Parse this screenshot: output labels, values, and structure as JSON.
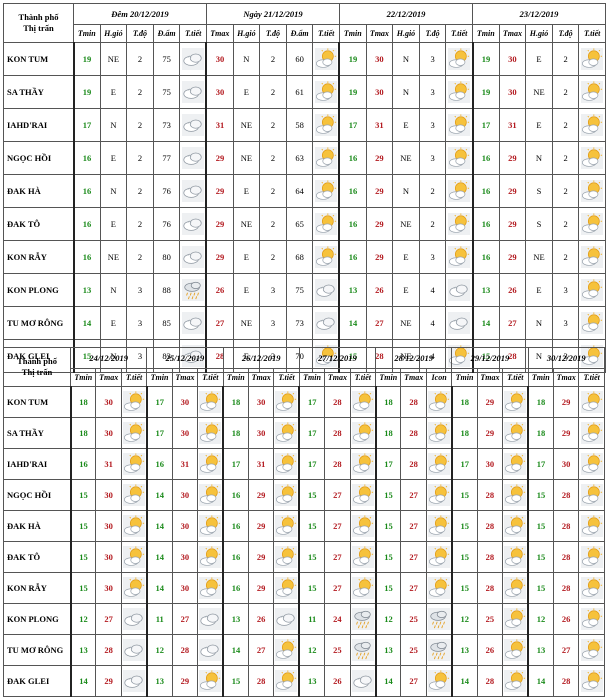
{
  "table1": {
    "city_header": [
      "Thành phố",
      "Thị trấn"
    ],
    "groups": [
      {
        "title": "Đêm 20/12/2019",
        "cols": [
          "Tmin",
          "H.gió",
          "T.độ",
          "Đ.ẩm",
          "T.tiết"
        ]
      },
      {
        "title": "Ngày 21/12/2019",
        "cols": [
          "Tmax",
          "H.gió",
          "T.độ",
          "Đ.ẩm",
          "T.tiết"
        ]
      },
      {
        "title": "22/12/2019",
        "cols": [
          "Tmin",
          "Tmax",
          "H.gió",
          "T.độ",
          "T.tiết"
        ]
      },
      {
        "title": "23/12/2019",
        "cols": [
          "Tmin",
          "Tmax",
          "H.gió",
          "T.độ",
          "T.tiết"
        ]
      }
    ],
    "rows": [
      {
        "city": "KON TUM",
        "g1": [
          "19",
          "NE",
          "2",
          "75"
        ],
        "i1": "cloud",
        "g2": [
          "30",
          "N",
          "2",
          "60"
        ],
        "i2": "suncloud",
        "g3": [
          "19",
          "30",
          "N",
          "3"
        ],
        "i3": "suncloud",
        "g4": [
          "19",
          "30",
          "E",
          "2"
        ],
        "i4": "suncloud"
      },
      {
        "city": "SA THẦY",
        "g1": [
          "19",
          "E",
          "2",
          "75"
        ],
        "i1": "cloud",
        "g2": [
          "30",
          "E",
          "2",
          "61"
        ],
        "i2": "suncloud",
        "g3": [
          "19",
          "30",
          "N",
          "3"
        ],
        "i3": "suncloud",
        "g4": [
          "19",
          "30",
          "NE",
          "2"
        ],
        "i4": "suncloud"
      },
      {
        "city": "IAHD'RAI",
        "g1": [
          "17",
          "N",
          "2",
          "73"
        ],
        "i1": "cloud",
        "g2": [
          "31",
          "NE",
          "2",
          "58"
        ],
        "i2": "suncloud",
        "g3": [
          "17",
          "31",
          "E",
          "3"
        ],
        "i3": "suncloud",
        "g4": [
          "17",
          "31",
          "E",
          "2"
        ],
        "i4": "suncloud"
      },
      {
        "city": "NGỌC HỒI",
        "g1": [
          "16",
          "E",
          "2",
          "77"
        ],
        "i1": "cloud",
        "g2": [
          "29",
          "NE",
          "2",
          "63"
        ],
        "i2": "suncloud",
        "g3": [
          "16",
          "29",
          "NE",
          "3"
        ],
        "i3": "suncloud",
        "g4": [
          "16",
          "29",
          "N",
          "2"
        ],
        "i4": "suncloud"
      },
      {
        "city": "ĐAK HÀ",
        "g1": [
          "16",
          "N",
          "2",
          "76"
        ],
        "i1": "cloud",
        "g2": [
          "29",
          "E",
          "2",
          "64"
        ],
        "i2": "suncloud",
        "g3": [
          "16",
          "29",
          "N",
          "2"
        ],
        "i3": "suncloud",
        "g4": [
          "16",
          "29",
          "S",
          "2"
        ],
        "i4": "suncloud"
      },
      {
        "city": "ĐAK TÔ",
        "g1": [
          "16",
          "E",
          "2",
          "76"
        ],
        "i1": "cloud",
        "g2": [
          "29",
          "NE",
          "2",
          "65"
        ],
        "i2": "suncloud",
        "g3": [
          "16",
          "29",
          "NE",
          "2"
        ],
        "i3": "suncloud",
        "g4": [
          "16",
          "29",
          "S",
          "2"
        ],
        "i4": "suncloud"
      },
      {
        "city": "KON RẪY",
        "g1": [
          "16",
          "NE",
          "2",
          "80"
        ],
        "i1": "cloud",
        "g2": [
          "29",
          "E",
          "2",
          "68"
        ],
        "i2": "suncloud",
        "g3": [
          "16",
          "29",
          "E",
          "3"
        ],
        "i3": "suncloud",
        "g4": [
          "16",
          "29",
          "NE",
          "2"
        ],
        "i4": "suncloud"
      },
      {
        "city": "KON PLONG",
        "g1": [
          "13",
          "N",
          "3",
          "88"
        ],
        "i1": "rain",
        "g2": [
          "26",
          "E",
          "3",
          "75"
        ],
        "i2": "cloud",
        "g3": [
          "13",
          "26",
          "E",
          "4"
        ],
        "i3": "cloud",
        "g4": [
          "13",
          "26",
          "E",
          "3"
        ],
        "i4": "suncloud"
      },
      {
        "city": "TU MƠ RÔNG",
        "g1": [
          "14",
          "E",
          "3",
          "85"
        ],
        "i1": "cloud",
        "g2": [
          "27",
          "NE",
          "3",
          "73"
        ],
        "i2": "cloud",
        "g3": [
          "14",
          "27",
          "NE",
          "4"
        ],
        "i3": "cloud",
        "g4": [
          "14",
          "27",
          "N",
          "3"
        ],
        "i4": "suncloud"
      },
      {
        "city": "ĐAK GLEI",
        "g1": [
          "15",
          "N",
          "3",
          "83"
        ],
        "i1": "cloud",
        "g2": [
          "28",
          "E",
          "3",
          "70"
        ],
        "i2": "suncloud",
        "g3": [
          "15",
          "28",
          "NE",
          "4"
        ],
        "i3": "suncloud",
        "g4": [
          "15",
          "28",
          "N",
          "3"
        ],
        "i4": "suncloud"
      }
    ]
  },
  "table2": {
    "city_header": [
      "Thành phố",
      "Thị trấn"
    ],
    "days": [
      {
        "title": "24/12/2019",
        "cols": [
          "Tmin",
          "Tmax",
          "T.tiết"
        ]
      },
      {
        "title": "25/12/2019",
        "cols": [
          "Tmin",
          "Tmax",
          "T.tiết"
        ]
      },
      {
        "title": "26/12/2019",
        "cols": [
          "Tmin",
          "Tmax",
          "T.tiết"
        ]
      },
      {
        "title": "27/12/2019",
        "cols": [
          "Tmin",
          "Tmax",
          "T.tiết"
        ]
      },
      {
        "title": "28/12/2019",
        "cols": [
          "Tmin",
          "Tmax",
          "Icon"
        ]
      },
      {
        "title": "29/12/2019",
        "cols": [
          "Tmin",
          "Tmax",
          "T.tiết"
        ]
      },
      {
        "title": "30/12/2019",
        "cols": [
          "Tmin",
          "Tmax",
          "T.tiết"
        ]
      }
    ],
    "rows": [
      {
        "city": "KON TUM",
        "d": [
          [
            "18",
            "30",
            "suncloud"
          ],
          [
            "17",
            "30",
            "suncloud"
          ],
          [
            "18",
            "30",
            "suncloud"
          ],
          [
            "17",
            "28",
            "suncloud"
          ],
          [
            "18",
            "28",
            "suncloud"
          ],
          [
            "18",
            "29",
            "suncloud"
          ],
          [
            "18",
            "29",
            "suncloud"
          ]
        ]
      },
      {
        "city": "SA THẦY",
        "d": [
          [
            "18",
            "30",
            "suncloud"
          ],
          [
            "17",
            "30",
            "suncloud"
          ],
          [
            "18",
            "30",
            "suncloud"
          ],
          [
            "17",
            "28",
            "suncloud"
          ],
          [
            "18",
            "28",
            "suncloud"
          ],
          [
            "18",
            "29",
            "suncloud"
          ],
          [
            "18",
            "29",
            "suncloud"
          ]
        ]
      },
      {
        "city": "IAHD'RAI",
        "d": [
          [
            "16",
            "31",
            "suncloud"
          ],
          [
            "16",
            "31",
            "suncloud"
          ],
          [
            "17",
            "31",
            "suncloud"
          ],
          [
            "17",
            "28",
            "suncloud"
          ],
          [
            "17",
            "28",
            "suncloud"
          ],
          [
            "17",
            "30",
            "suncloud"
          ],
          [
            "17",
            "30",
            "suncloud"
          ]
        ]
      },
      {
        "city": "NGỌC HỒI",
        "d": [
          [
            "15",
            "30",
            "suncloud"
          ],
          [
            "14",
            "30",
            "suncloud"
          ],
          [
            "16",
            "29",
            "suncloud"
          ],
          [
            "15",
            "27",
            "suncloud"
          ],
          [
            "15",
            "27",
            "suncloud"
          ],
          [
            "15",
            "28",
            "suncloud"
          ],
          [
            "15",
            "28",
            "suncloud"
          ]
        ]
      },
      {
        "city": "ĐAK HÀ",
        "d": [
          [
            "15",
            "30",
            "suncloud"
          ],
          [
            "14",
            "30",
            "suncloud"
          ],
          [
            "16",
            "29",
            "suncloud"
          ],
          [
            "15",
            "27",
            "suncloud"
          ],
          [
            "15",
            "27",
            "suncloud"
          ],
          [
            "15",
            "28",
            "suncloud"
          ],
          [
            "15",
            "28",
            "suncloud"
          ]
        ]
      },
      {
        "city": "ĐAK TÔ",
        "d": [
          [
            "15",
            "30",
            "suncloud"
          ],
          [
            "14",
            "30",
            "suncloud"
          ],
          [
            "16",
            "29",
            "suncloud"
          ],
          [
            "15",
            "27",
            "suncloud"
          ],
          [
            "15",
            "27",
            "suncloud"
          ],
          [
            "15",
            "28",
            "suncloud"
          ],
          [
            "15",
            "28",
            "suncloud"
          ]
        ]
      },
      {
        "city": "KON RẪY",
        "d": [
          [
            "15",
            "30",
            "suncloud"
          ],
          [
            "14",
            "30",
            "suncloud"
          ],
          [
            "16",
            "29",
            "suncloud"
          ],
          [
            "15",
            "27",
            "suncloud"
          ],
          [
            "15",
            "27",
            "suncloud"
          ],
          [
            "15",
            "28",
            "suncloud"
          ],
          [
            "15",
            "28",
            "suncloud"
          ]
        ]
      },
      {
        "city": "KON PLONG",
        "d": [
          [
            "12",
            "27",
            "cloud"
          ],
          [
            "11",
            "27",
            "cloud"
          ],
          [
            "13",
            "26",
            "cloud"
          ],
          [
            "11",
            "24",
            "rain"
          ],
          [
            "12",
            "25",
            "rain"
          ],
          [
            "12",
            "25",
            "suncloud"
          ],
          [
            "12",
            "26",
            "suncloud"
          ]
        ]
      },
      {
        "city": "TU MƠ RÔNG",
        "d": [
          [
            "13",
            "28",
            "cloud"
          ],
          [
            "12",
            "28",
            "cloud"
          ],
          [
            "14",
            "27",
            "suncloud"
          ],
          [
            "12",
            "25",
            "rain"
          ],
          [
            "13",
            "25",
            "rain"
          ],
          [
            "13",
            "26",
            "suncloud"
          ],
          [
            "13",
            "27",
            "suncloud"
          ]
        ]
      },
      {
        "city": "ĐAK GLEI",
        "d": [
          [
            "14",
            "29",
            "cloud"
          ],
          [
            "13",
            "29",
            "suncloud"
          ],
          [
            "15",
            "28",
            "suncloud"
          ],
          [
            "13",
            "26",
            "cloud"
          ],
          [
            "14",
            "27",
            "suncloud"
          ],
          [
            "14",
            "28",
            "suncloud"
          ],
          [
            "14",
            "28",
            "suncloud"
          ]
        ]
      }
    ]
  }
}
